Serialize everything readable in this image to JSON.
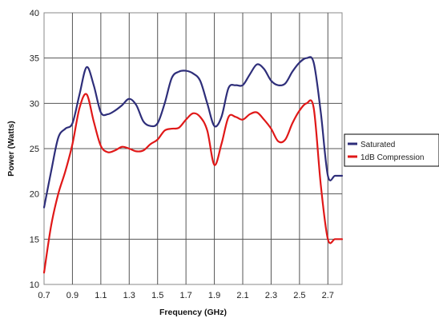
{
  "chart_data": {
    "type": "line",
    "xlabel": "Frequency (GHz)",
    "ylabel": "Power (Watts)",
    "xlim": [
      0.7,
      2.8
    ],
    "ylim": [
      10,
      40
    ],
    "x_ticks": [
      "0.7",
      "0.9",
      "1.1",
      "1.3",
      "1.5",
      "1.7",
      "1.9",
      "2.1",
      "2.3",
      "2.5",
      "2.7"
    ],
    "y_ticks": [
      "10",
      "15",
      "20",
      "25",
      "30",
      "35",
      "40"
    ],
    "grid": true,
    "legend_position": "right",
    "series": [
      {
        "name": "Saturated",
        "color": "#2e2e7a",
        "x": [
          0.7,
          0.75,
          0.8,
          0.85,
          0.9,
          0.95,
          1.0,
          1.05,
          1.1,
          1.15,
          1.2,
          1.25,
          1.3,
          1.35,
          1.4,
          1.45,
          1.5,
          1.55,
          1.6,
          1.65,
          1.7,
          1.75,
          1.8,
          1.85,
          1.9,
          1.95,
          2.0,
          2.05,
          2.1,
          2.15,
          2.2,
          2.25,
          2.3,
          2.35,
          2.4,
          2.45,
          2.5,
          2.55,
          2.6,
          2.65,
          2.7,
          2.75,
          2.8
        ],
        "values": [
          18.5,
          22.5,
          26.2,
          27.2,
          27.8,
          31.0,
          34.0,
          32.0,
          29.0,
          28.8,
          29.2,
          29.8,
          30.5,
          29.8,
          28.0,
          27.5,
          27.8,
          30.0,
          32.8,
          33.5,
          33.6,
          33.3,
          32.5,
          30.0,
          27.5,
          28.5,
          31.7,
          32.0,
          32.0,
          33.2,
          34.3,
          33.8,
          32.5,
          32.0,
          32.2,
          33.5,
          34.5,
          35.0,
          34.5,
          29.0,
          22.0,
          22.0,
          22.0
        ]
      },
      {
        "name": "1dB Compression",
        "color": "#e01818",
        "x": [
          0.7,
          0.75,
          0.8,
          0.85,
          0.9,
          0.95,
          1.0,
          1.05,
          1.1,
          1.15,
          1.2,
          1.25,
          1.3,
          1.35,
          1.4,
          1.45,
          1.5,
          1.55,
          1.6,
          1.65,
          1.7,
          1.75,
          1.8,
          1.85,
          1.9,
          1.95,
          2.0,
          2.05,
          2.1,
          2.15,
          2.2,
          2.25,
          2.3,
          2.35,
          2.4,
          2.45,
          2.5,
          2.55,
          2.6,
          2.65,
          2.7,
          2.75,
          2.8
        ],
        "values": [
          11.3,
          16.5,
          20.0,
          22.5,
          25.5,
          29.5,
          31.0,
          28.0,
          25.3,
          24.6,
          24.8,
          25.2,
          25.0,
          24.7,
          24.8,
          25.5,
          26.0,
          27.0,
          27.2,
          27.3,
          28.2,
          28.9,
          28.5,
          27.0,
          23.2,
          25.5,
          28.5,
          28.5,
          28.2,
          28.8,
          29.0,
          28.2,
          27.2,
          25.8,
          26.0,
          27.8,
          29.2,
          30.0,
          29.5,
          21.0,
          15.0,
          15.0,
          15.0
        ]
      }
    ]
  }
}
